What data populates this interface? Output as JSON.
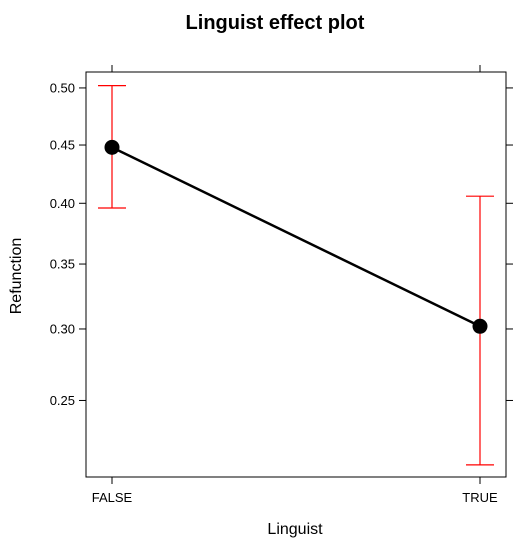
{
  "chart_data": {
    "type": "line",
    "title": "Linguist effect plot",
    "xlabel": "Linguist",
    "ylabel": "Refunction",
    "categories": [
      "FALSE",
      "TRUE"
    ],
    "series": [
      {
        "values": [
          0.448,
          0.302
        ],
        "lower": [
          0.396,
          0.21
        ],
        "upper": [
          0.502,
          0.406
        ]
      }
    ],
    "ylim": [
      0.203,
      0.514
    ],
    "yticks": [
      0.25,
      0.3,
      0.35,
      0.4,
      0.45,
      0.5
    ],
    "ytick_labels": [
      "0.25",
      "0.30",
      "0.35",
      "0.40",
      "0.45",
      "0.50"
    ],
    "y_scale": "logit",
    "grid": false,
    "line_color": "#000000",
    "errorbar_color": "#ff0000",
    "point_color": "#000000"
  }
}
